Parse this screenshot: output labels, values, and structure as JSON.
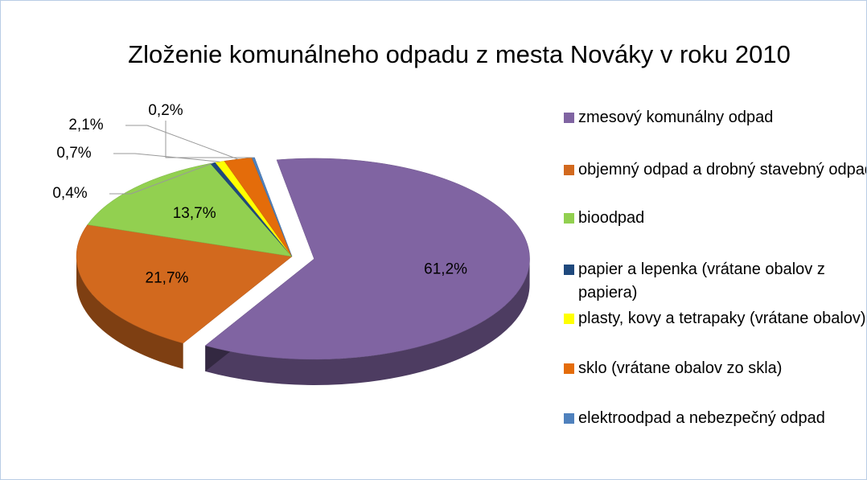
{
  "chart_data": {
    "type": "pie",
    "title": "Zloženie komunálneho odpadu z mesta Nováky v roku 2010",
    "categories": [
      "zmesový komunálny odpad",
      "objemný odpad a drobný stavebný odpad",
      "bioodpad",
      "papier a lepenka (vrátane obalov z papiera)",
      "plasty, kovy a tetrapaky (vrátane obalov)",
      "sklo (vrátane obalov zo skla)",
      "elektroodpad a nebezpečný odpad"
    ],
    "values": [
      61.2,
      21.7,
      13.7,
      0.4,
      0.7,
      2.1,
      0.2
    ],
    "value_labels": [
      "61,2%",
      "21,7%",
      "13,7%",
      "0,4%",
      "0,7%",
      "2,1%",
      "0,2%"
    ],
    "colors": [
      "#8064a2",
      "#d2691e",
      "#92d050",
      "#1f497d",
      "#ffff00",
      "#e46c0a",
      "#4f81bd"
    ],
    "legend": "right"
  }
}
